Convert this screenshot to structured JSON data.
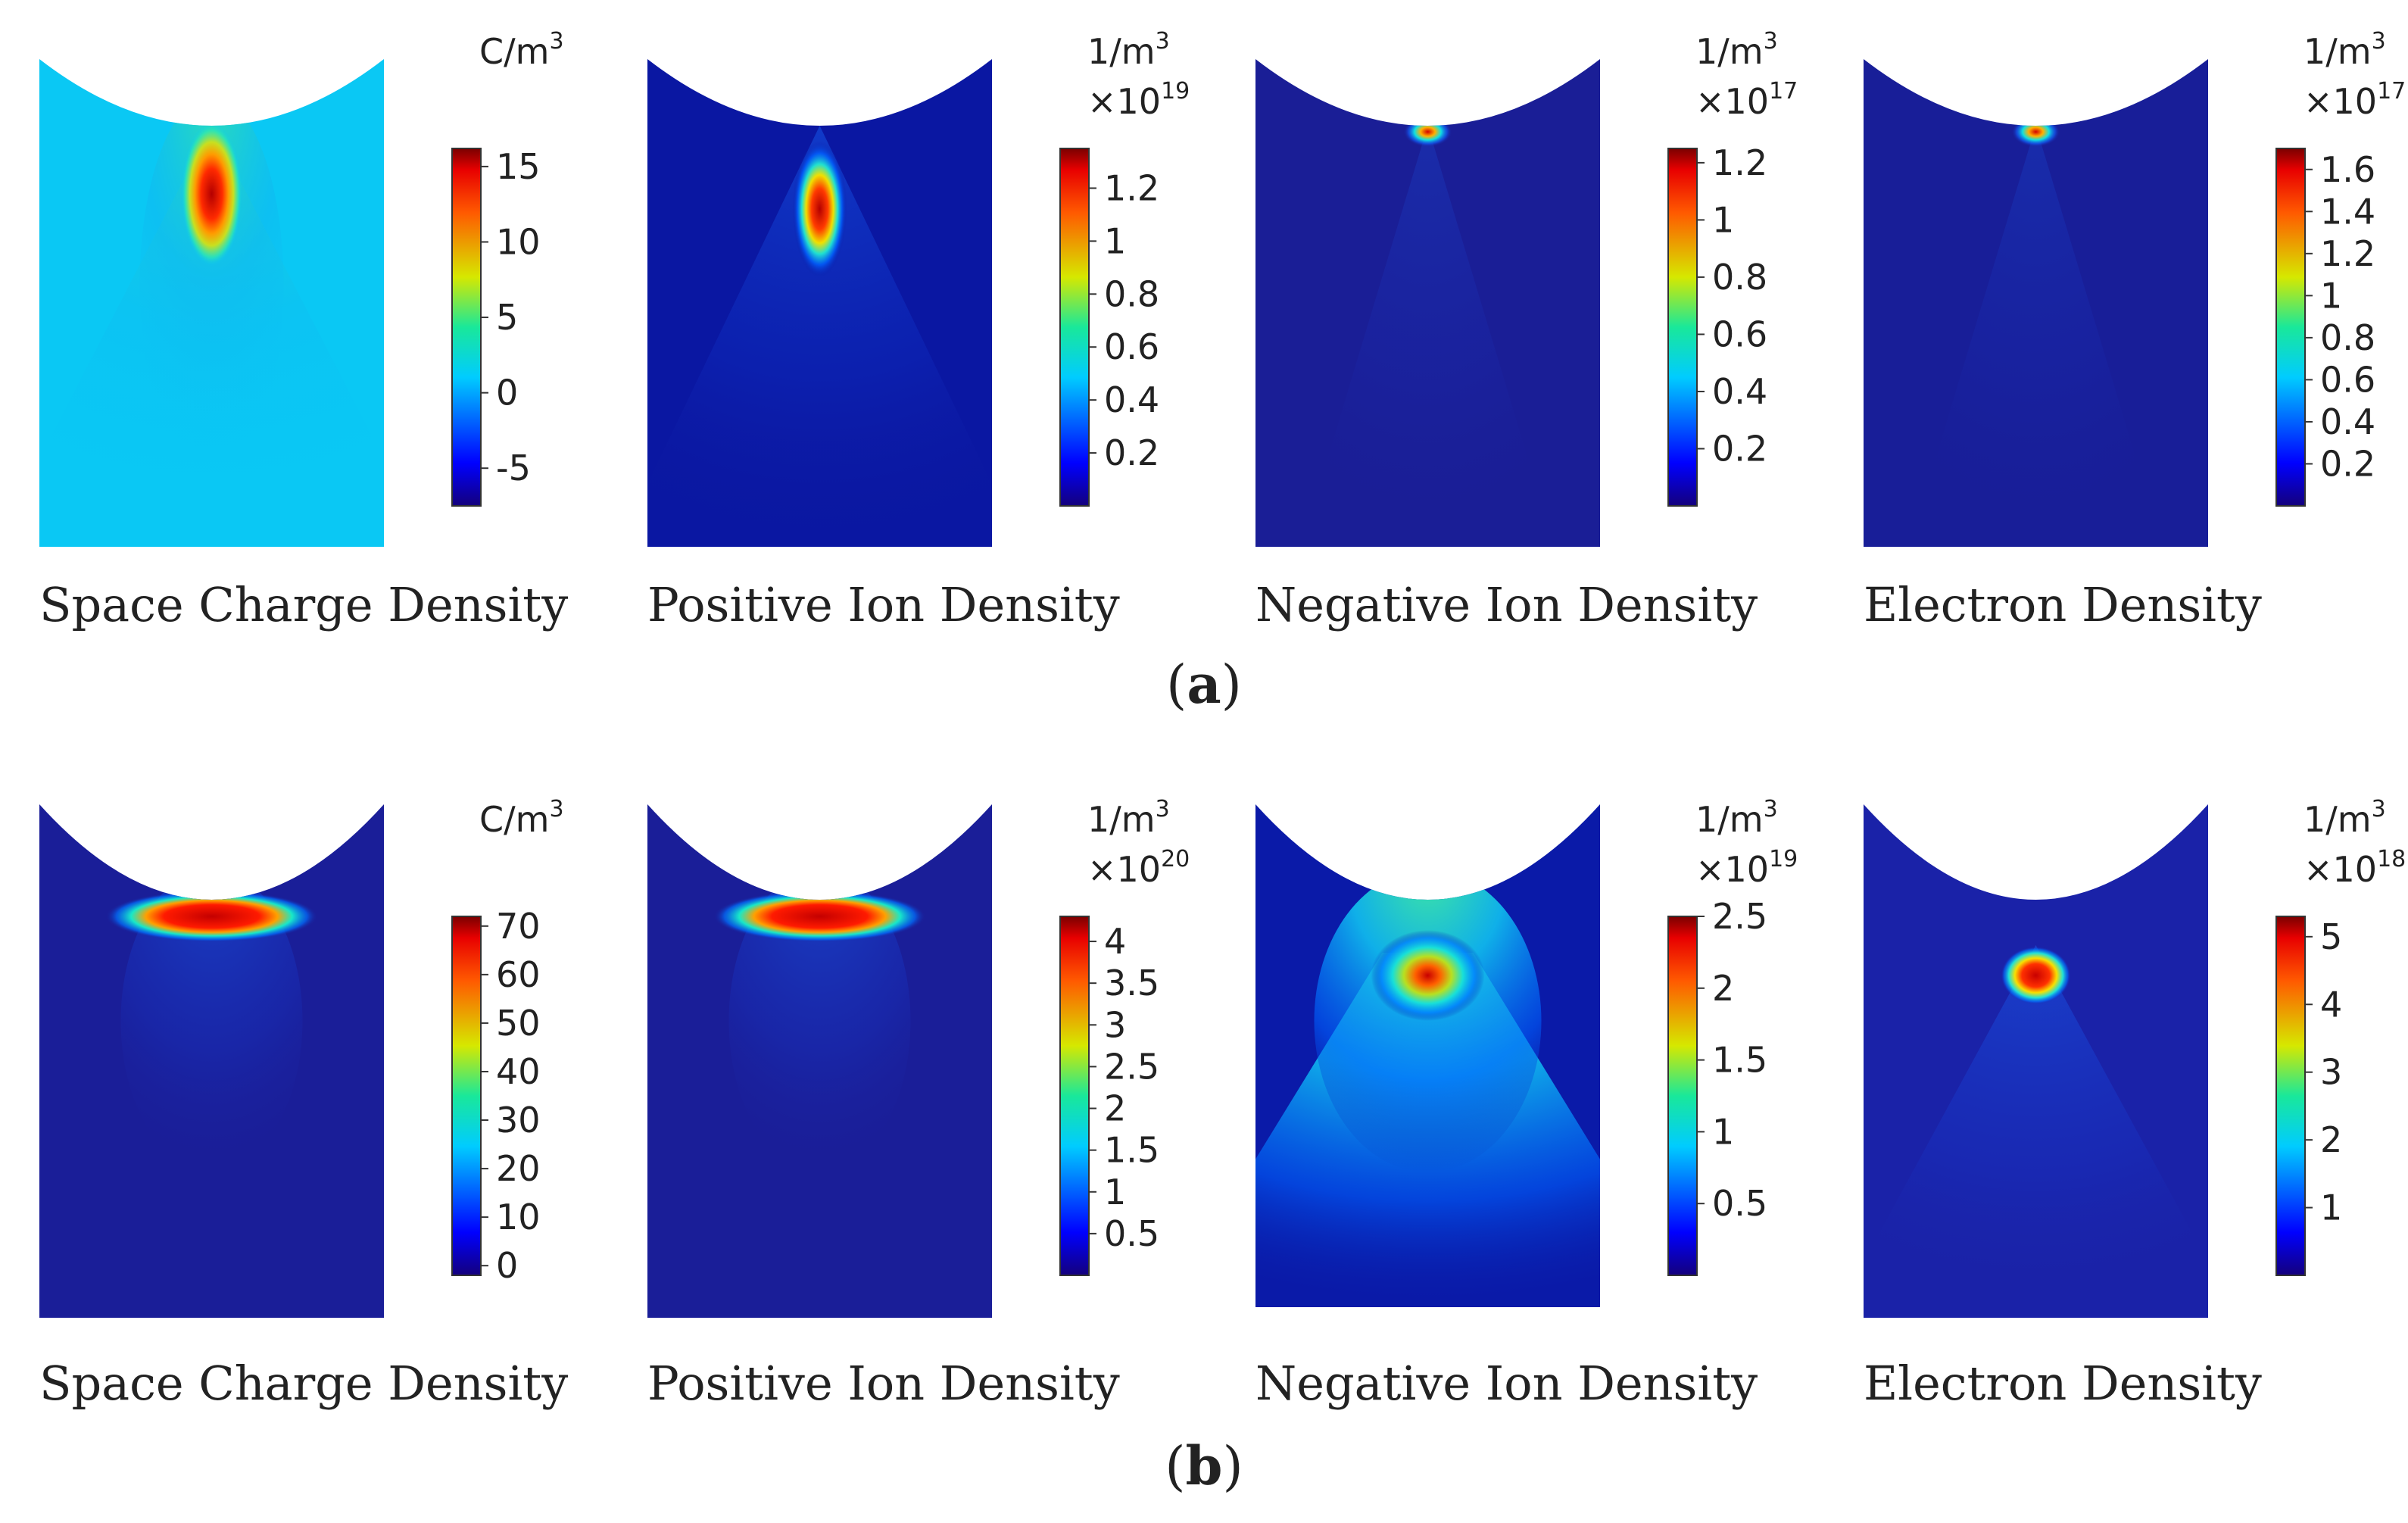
{
  "figure": {
    "rows": [
      {
        "label": "a",
        "plots": [
          {
            "title": "Space Charge Density",
            "unit": "C/m",
            "unit_sup": "3",
            "multiplier_base": "",
            "multiplier_exp": "",
            "ticks": [
              "15",
              "10",
              "5",
              "0",
              "-5"
            ],
            "tick_values": [
              15,
              10,
              5,
              0,
              -5
            ],
            "range": [
              -7.5,
              16.2
            ],
            "background": "#0ac8f4",
            "hotspot": "bigvert"
          },
          {
            "title": "Positive Ion Density",
            "unit": "1/m",
            "unit_sup": "3",
            "multiplier_base": "×10",
            "multiplier_exp": "19",
            "ticks": [
              "1.2",
              "1",
              "0.8",
              "0.6",
              "0.4",
              "0.2"
            ],
            "tick_values": [
              1.2,
              1.0,
              0.8,
              0.6,
              0.4,
              0.2
            ],
            "range": [
              0.0,
              1.35
            ],
            "background": "#0a17a2",
            "hotspot": "vert"
          },
          {
            "title": "Negative Ion Density",
            "unit": "1/m",
            "unit_sup": "3",
            "multiplier_base": "×10",
            "multiplier_exp": "17",
            "ticks": [
              "1.2",
              "1",
              "0.8",
              "0.6",
              "0.4",
              "0.2"
            ],
            "tick_values": [
              1.2,
              1.0,
              0.8,
              0.6,
              0.4,
              0.2
            ],
            "range": [
              0.0,
              1.25
            ],
            "background": "#1a1e96",
            "hotspot": "tip"
          },
          {
            "title": "Electron Density",
            "unit": "1/m",
            "unit_sup": "3",
            "multiplier_base": "×10",
            "multiplier_exp": "17",
            "ticks": [
              "1.6",
              "1.4",
              "1.2",
              "1",
              "0.8",
              "0.6",
              "0.4",
              "0.2"
            ],
            "tick_values": [
              1.6,
              1.4,
              1.2,
              1.0,
              0.8,
              0.6,
              0.4,
              0.2
            ],
            "range": [
              0.0,
              1.7
            ],
            "background": "#181e98",
            "hotspot": "tip"
          }
        ]
      },
      {
        "label": "b",
        "plots": [
          {
            "title": "Space Charge Density",
            "unit": "C/m",
            "unit_sup": "3",
            "multiplier_base": "",
            "multiplier_exp": "",
            "ticks": [
              "70",
              "60",
              "50",
              "40",
              "30",
              "20",
              "10",
              "0"
            ],
            "tick_values": [
              70,
              60,
              50,
              40,
              30,
              20,
              10,
              0
            ],
            "range": [
              -2,
              72
            ],
            "background": "#1a1e98",
            "hotspot": "flat"
          },
          {
            "title": "Positive Ion Density",
            "unit": "1/m",
            "unit_sup": "3",
            "multiplier_base": "×10",
            "multiplier_exp": "20",
            "ticks": [
              "4",
              "3.5",
              "3",
              "2.5",
              "2",
              "1.5",
              "1",
              "0.5"
            ],
            "tick_values": [
              4,
              3.5,
              3,
              2.5,
              2,
              1.5,
              1,
              0.5
            ],
            "range": [
              0.0,
              4.3
            ],
            "background": "#1a1e98",
            "hotspot": "flat"
          },
          {
            "title": "Negative Ion Density",
            "unit": "1/m",
            "unit_sup": "3",
            "multiplier_base": "×10",
            "multiplier_exp": "19",
            "ticks": [
              "2.5",
              "2",
              "1.5",
              "1",
              "0.5"
            ],
            "tick_values": [
              2.5,
              2,
              1.5,
              1,
              0.5
            ],
            "range": [
              0.0,
              2.5
            ],
            "background": "#0a1aa8",
            "hotspot": "plume"
          },
          {
            "title": "Electron Density",
            "unit": "1/m",
            "unit_sup": "3",
            "multiplier_base": "×10",
            "multiplier_exp": "18",
            "ticks": [
              "5",
              "4",
              "3",
              "2",
              "1"
            ],
            "tick_values": [
              5,
              4,
              3,
              2,
              1
            ],
            "range": [
              0.0,
              5.3
            ],
            "background": "#1a22a8",
            "hotspot": "blob"
          }
        ]
      }
    ]
  }
}
